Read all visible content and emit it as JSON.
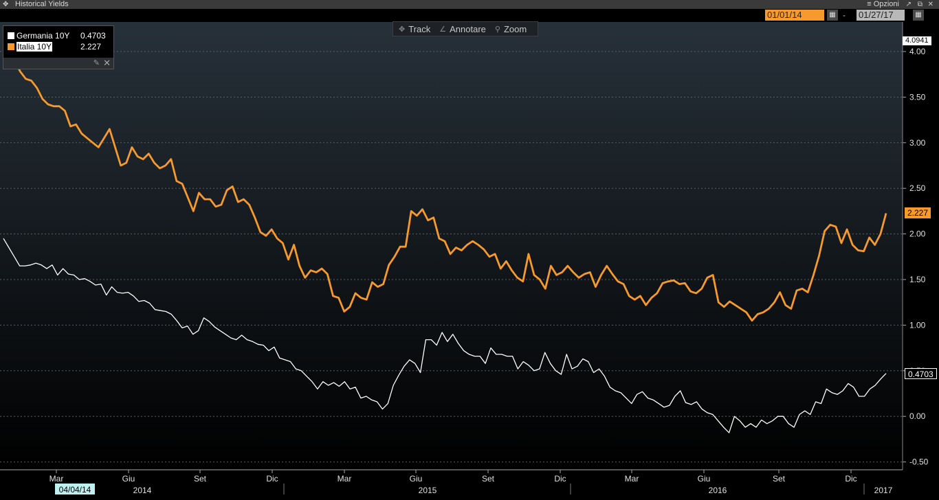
{
  "window": {
    "title": "Historical Yields",
    "options_label": "≡ Opzioni"
  },
  "dates": {
    "start": "01/01/14",
    "end": "01/27/17"
  },
  "tools": [
    {
      "label": "Track",
      "icon": "crosshair-icon"
    },
    {
      "label": "Annotare",
      "icon": "pencil-icon"
    },
    {
      "label": "Zoom",
      "icon": "magnifier-icon"
    }
  ],
  "legend": [
    {
      "name": "Germania 10Y",
      "value": "0.4703",
      "color": "#ffffff"
    },
    {
      "name": "Italia 10Y",
      "value": "2.227",
      "color": "#f79a2e"
    }
  ],
  "top_label": "4.0941",
  "cursor_date": "04/04/14",
  "chart_data": {
    "type": "line",
    "x_axis": {
      "months": [
        "Mar",
        "Giu",
        "Set",
        "Dic",
        "Mar",
        "Giu",
        "Set",
        "Dic",
        "Mar",
        "Giu",
        "Set",
        "Dic"
      ],
      "years": [
        "2014",
        "2015",
        "2016",
        "2017"
      ]
    },
    "y_axis": {
      "ticks": [
        "4.00",
        "3.50",
        "3.00",
        "2.50",
        "2.00",
        "1.50",
        "1.00",
        "0.50",
        "0.00",
        "-0.50"
      ],
      "min": -0.5,
      "max": 4.0
    },
    "series": [
      {
        "name": "Italia 10Y",
        "color": "#f79a2e",
        "last": "2.227",
        "values": [
          3.9,
          3.84,
          3.9,
          3.78,
          3.7,
          3.68,
          3.6,
          3.48,
          3.42,
          3.4,
          3.4,
          3.35,
          3.18,
          3.2,
          3.1,
          3.05,
          3.0,
          2.95,
          3.05,
          3.15,
          2.95,
          2.75,
          2.78,
          2.95,
          2.85,
          2.82,
          2.88,
          2.78,
          2.72,
          2.75,
          2.82,
          2.58,
          2.55,
          2.4,
          2.25,
          2.45,
          2.38,
          2.38,
          2.3,
          2.32,
          2.48,
          2.52,
          2.35,
          2.38,
          2.32,
          2.18,
          2.02,
          1.98,
          2.05,
          1.95,
          1.9,
          1.72,
          1.88,
          1.65,
          1.52,
          1.6,
          1.58,
          1.62,
          1.56,
          1.32,
          1.3,
          1.15,
          1.2,
          1.35,
          1.3,
          1.28,
          1.47,
          1.42,
          1.45,
          1.66,
          1.75,
          1.86,
          1.86,
          2.25,
          2.2,
          2.27,
          2.15,
          2.18,
          1.95,
          1.92,
          1.78,
          1.85,
          1.82,
          1.88,
          1.92,
          1.88,
          1.83,
          1.75,
          1.78,
          1.62,
          1.7,
          1.6,
          1.52,
          1.48,
          1.78,
          1.55,
          1.5,
          1.4,
          1.65,
          1.55,
          1.58,
          1.65,
          1.58,
          1.52,
          1.56,
          1.58,
          1.42,
          1.55,
          1.65,
          1.56,
          1.48,
          1.45,
          1.32,
          1.28,
          1.32,
          1.22,
          1.3,
          1.35,
          1.46,
          1.48,
          1.49,
          1.45,
          1.46,
          1.37,
          1.35,
          1.4,
          1.52,
          1.55,
          1.25,
          1.2,
          1.26,
          1.22,
          1.18,
          1.14,
          1.05,
          1.12,
          1.14,
          1.18,
          1.25,
          1.36,
          1.22,
          1.18,
          1.38,
          1.4,
          1.36,
          1.55,
          1.76,
          2.03,
          2.1,
          2.08,
          1.9,
          2.05,
          1.88,
          1.82,
          1.81,
          1.96,
          1.88,
          2.0,
          2.227
        ]
      },
      {
        "name": "Germania 10Y",
        "color": "#ffffff",
        "last": "0.4703",
        "values": [
          1.95,
          1.85,
          1.75,
          1.65,
          1.65,
          1.66,
          1.68,
          1.66,
          1.62,
          1.66,
          1.55,
          1.62,
          1.56,
          1.55,
          1.5,
          1.51,
          1.48,
          1.44,
          1.45,
          1.33,
          1.42,
          1.36,
          1.35,
          1.36,
          1.32,
          1.26,
          1.27,
          1.24,
          1.17,
          1.16,
          1.15,
          1.12,
          1.05,
          0.97,
          0.99,
          0.9,
          0.94,
          1.08,
          1.04,
          0.98,
          0.94,
          0.9,
          0.86,
          0.84,
          0.89,
          0.84,
          0.82,
          0.79,
          0.78,
          0.72,
          0.76,
          0.64,
          0.62,
          0.6,
          0.52,
          0.5,
          0.44,
          0.38,
          0.3,
          0.38,
          0.34,
          0.37,
          0.33,
          0.38,
          0.3,
          0.32,
          0.2,
          0.22,
          0.18,
          0.16,
          0.08,
          0.14,
          0.34,
          0.45,
          0.55,
          0.62,
          0.58,
          0.48,
          0.84,
          0.84,
          0.78,
          0.92,
          0.82,
          0.9,
          0.8,
          0.72,
          0.68,
          0.66,
          0.66,
          0.58,
          0.75,
          0.68,
          0.68,
          0.66,
          0.66,
          0.52,
          0.6,
          0.56,
          0.5,
          0.52,
          0.7,
          0.58,
          0.5,
          0.46,
          0.68,
          0.52,
          0.55,
          0.63,
          0.6,
          0.48,
          0.52,
          0.44,
          0.32,
          0.28,
          0.26,
          0.2,
          0.14,
          0.24,
          0.27,
          0.2,
          0.18,
          0.14,
          0.1,
          0.12,
          0.22,
          0.28,
          0.15,
          0.13,
          0.16,
          0.08,
          0.04,
          0.02,
          -0.05,
          -0.12,
          -0.18,
          0.0,
          -0.05,
          -0.12,
          -0.08,
          -0.12,
          -0.04,
          -0.08,
          -0.05,
          0.0,
          0.0,
          -0.08,
          -0.12,
          0.02,
          0.06,
          0.02,
          0.16,
          0.14,
          0.3,
          0.26,
          0.24,
          0.28,
          0.36,
          0.32,
          0.22,
          0.22,
          0.3,
          0.34,
          0.41,
          0.4703
        ]
      }
    ]
  }
}
